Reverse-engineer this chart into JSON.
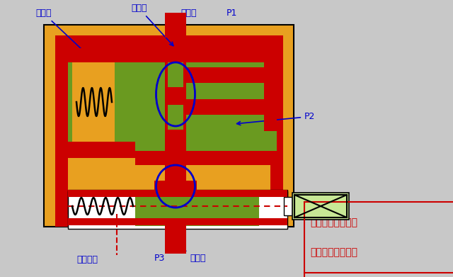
{
  "bg_color": "#c8c8c8",
  "orange": "#e8a020",
  "red": "#cc0000",
  "dark_red": "#990000",
  "green": "#6a9a20",
  "light_green": "#c8e896",
  "white": "#ffffff",
  "black": "#000000",
  "blue": "#0000cc",
  "red_text": "#cc0000",
  "right_text1": "当出口压力降底时",
  "right_text2": "当出口压力升高时",
  "label_jieliu": "节流口",
  "label_jianya": "减压口",
  "label_jinyou": "进油口",
  "label_P1": "P1",
  "label_P2": "P2",
  "label_P3": "P3",
  "label_xielou": "泄露油口",
  "label_chuyou": "出油口"
}
